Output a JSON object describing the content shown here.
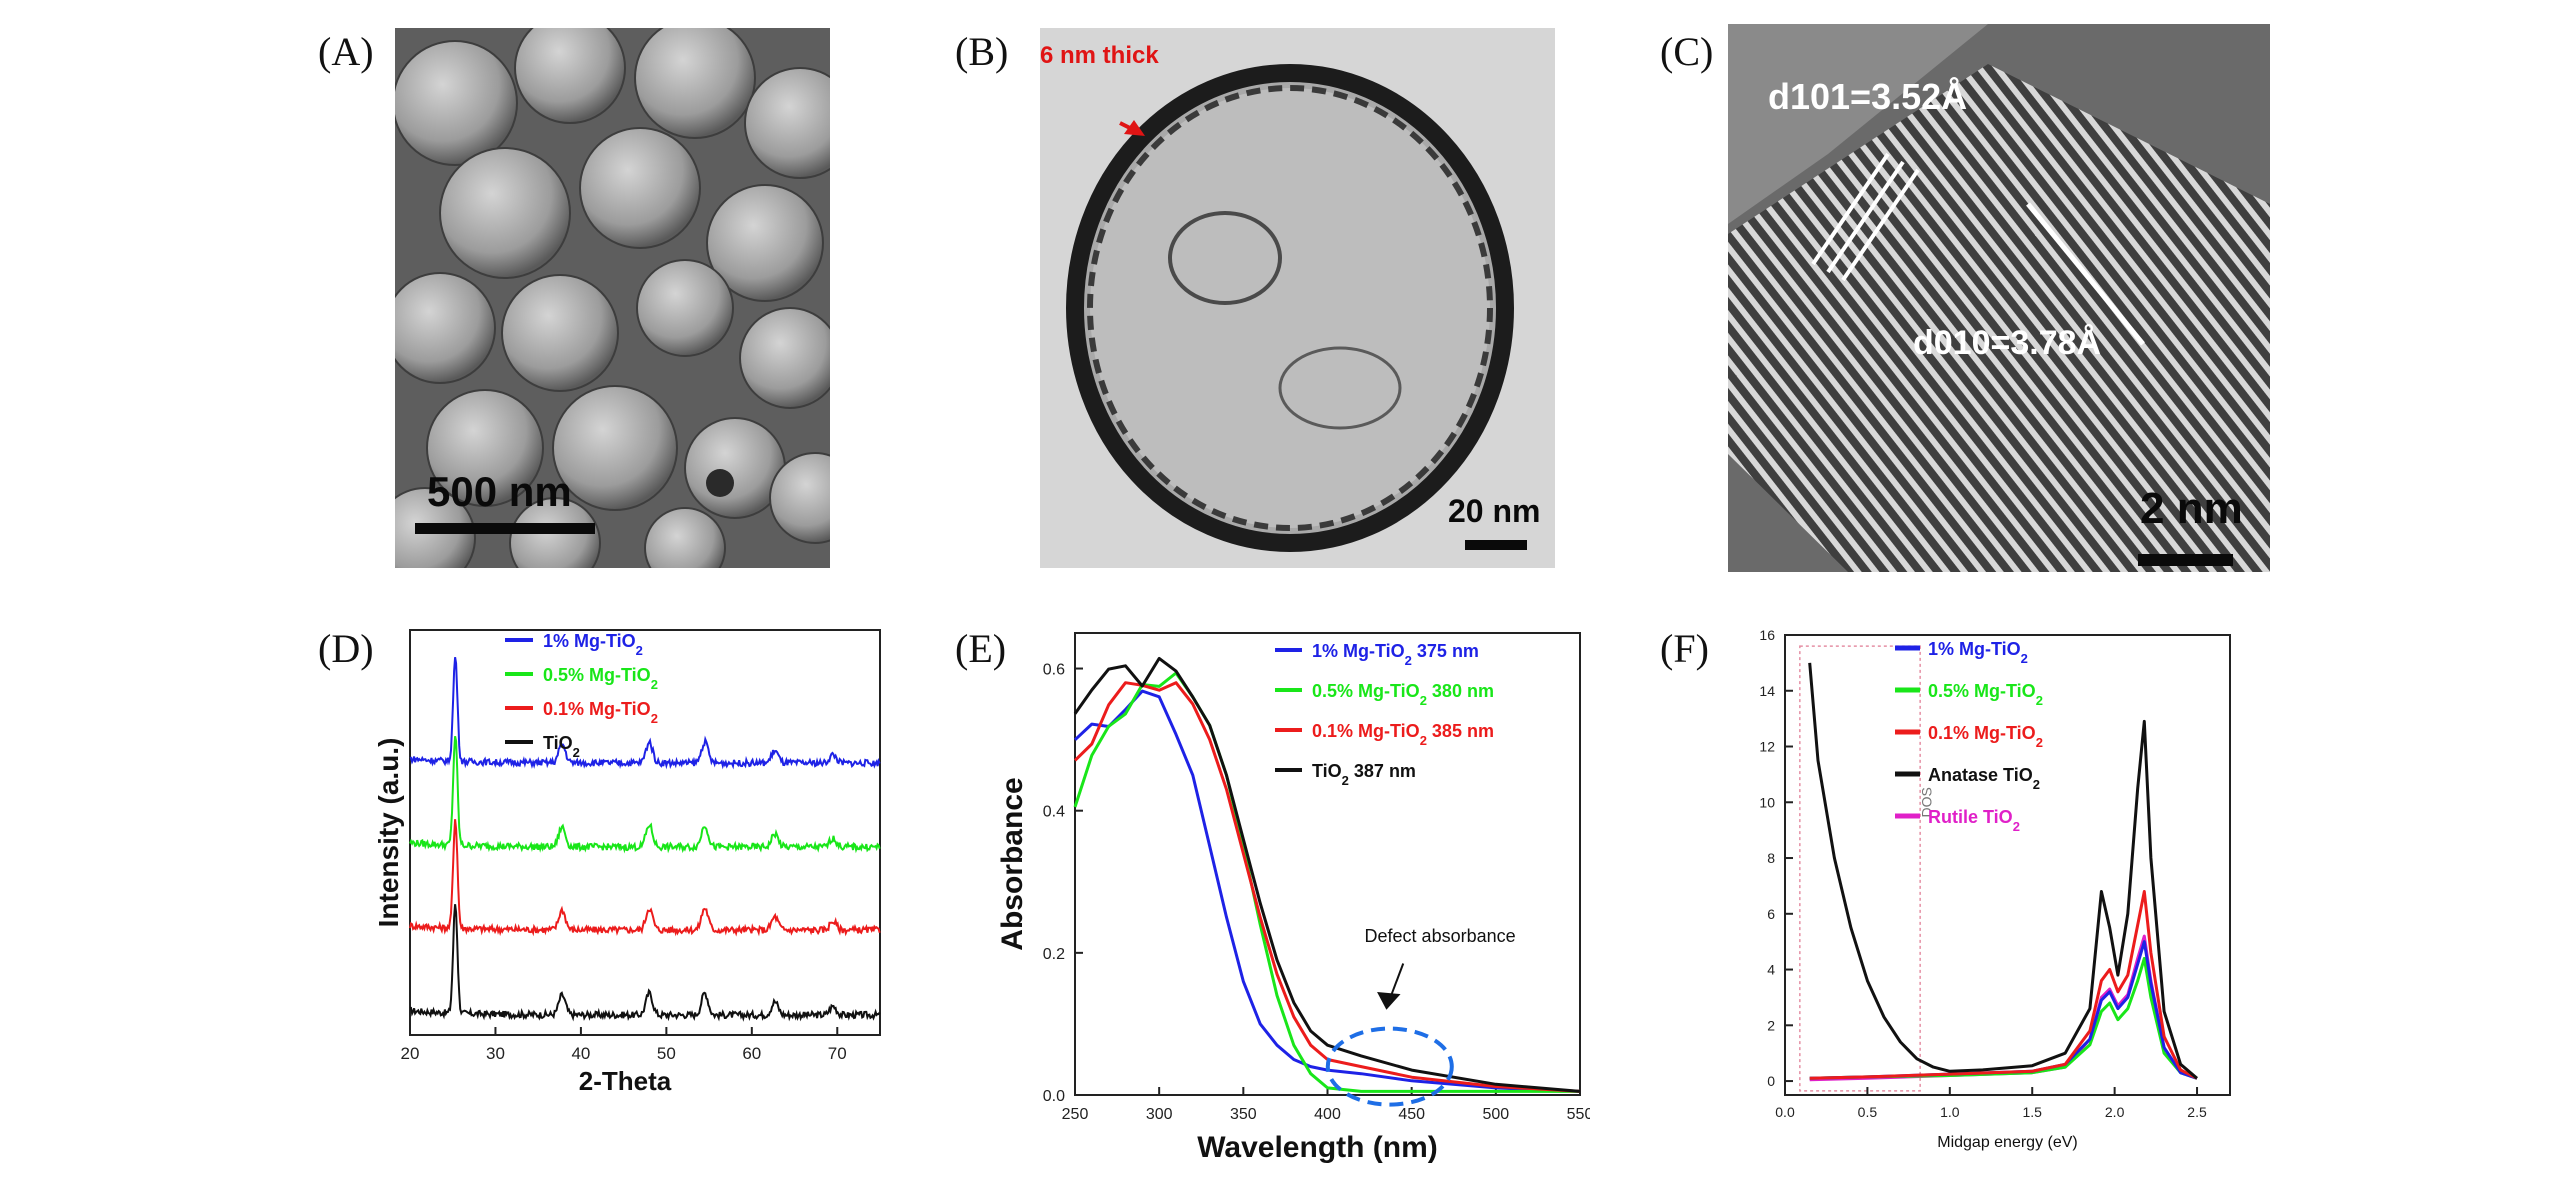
{
  "figure": {
    "panel_labels": [
      "(A)",
      "(B)",
      "(C)",
      "(D)",
      "(E)",
      "(F)"
    ],
    "panel_a": {
      "scale_bar": "500 nm"
    },
    "panel_b": {
      "annotation": "6 nm thick",
      "scale_bar": "20 nm"
    },
    "panel_c": {
      "d101_label": "d101=3.52Å",
      "d010_label": "d010=3.78Å",
      "scale_bar": "2 nm"
    }
  },
  "chart_data": [
    {
      "panel": "D",
      "type": "line",
      "xlabel": "2-Theta",
      "ylabel": "Intensity (a.u.)",
      "xlim": [
        20,
        75
      ],
      "x_ticks": [
        20,
        30,
        40,
        50,
        60,
        70
      ],
      "legend_position": "top-right",
      "peaks_2theta": [
        25.3,
        37.8,
        48.0,
        54.5,
        62.7,
        69.5
      ],
      "series": [
        {
          "name": "1% Mg-TiO2",
          "color": "#1e22e6",
          "offset": 3
        },
        {
          "name": "0.5% Mg-TiO2",
          "color": "#19e619",
          "offset": 2
        },
        {
          "name": "0.1% Mg-TiO2",
          "color": "#ec1c1c",
          "offset": 1
        },
        {
          "name": "TiO2",
          "color": "#111111",
          "offset": 0
        }
      ]
    },
    {
      "panel": "E",
      "type": "line",
      "xlabel": "Wavelength (nm)",
      "ylabel": "Absorbance",
      "xlim": [
        250,
        550
      ],
      "ylim": [
        0,
        0.65
      ],
      "x_ticks": [
        250,
        300,
        350,
        400,
        450,
        500,
        550
      ],
      "x_tick_labels": [
        "250",
        "300",
        "350",
        "400",
        "450",
        "500",
        "550"
      ],
      "y_ticks": [
        0.0,
        0.2,
        0.4,
        0.6
      ],
      "y_tick_labels": [
        "0.0",
        "0.2",
        "0.4",
        "0.6"
      ],
      "legend_position": "top-right",
      "annotation": "Defect absorbance",
      "series": [
        {
          "name": "1% Mg-TiO2 375 nm",
          "color": "#1e22e6",
          "x": [
            250,
            260,
            270,
            280,
            290,
            300,
            310,
            320,
            330,
            340,
            350,
            360,
            370,
            380,
            390,
            400,
            420,
            450,
            500,
            550
          ],
          "y": [
            0.5,
            0.52,
            0.53,
            0.55,
            0.57,
            0.56,
            0.52,
            0.45,
            0.35,
            0.25,
            0.16,
            0.1,
            0.07,
            0.05,
            0.04,
            0.035,
            0.03,
            0.02,
            0.01,
            0.005
          ]
        },
        {
          "name": "0.5% Mg-TiO2 380 nm",
          "color": "#19e619",
          "x": [
            250,
            260,
            270,
            280,
            290,
            300,
            310,
            320,
            330,
            340,
            350,
            360,
            370,
            380,
            390,
            400,
            420,
            450,
            500,
            550
          ],
          "y": [
            0.42,
            0.48,
            0.52,
            0.55,
            0.57,
            0.58,
            0.58,
            0.56,
            0.52,
            0.45,
            0.35,
            0.24,
            0.14,
            0.07,
            0.03,
            0.01,
            0.005,
            0.005,
            0.005,
            0.005
          ]
        },
        {
          "name": "0.1% Mg-TiO2 385 nm",
          "color": "#ec1c1c",
          "x": [
            250,
            260,
            270,
            280,
            290,
            300,
            310,
            320,
            330,
            340,
            350,
            360,
            370,
            380,
            390,
            400,
            420,
            450,
            500,
            550
          ],
          "y": [
            0.47,
            0.5,
            0.54,
            0.57,
            0.59,
            0.58,
            0.57,
            0.55,
            0.5,
            0.43,
            0.34,
            0.25,
            0.17,
            0.11,
            0.07,
            0.05,
            0.04,
            0.025,
            0.012,
            0.005
          ]
        },
        {
          "name": "TiO2 387 nm",
          "color": "#111111",
          "x": [
            250,
            260,
            270,
            280,
            290,
            300,
            310,
            320,
            330,
            340,
            350,
            360,
            370,
            380,
            390,
            400,
            420,
            450,
            500,
            550
          ],
          "y": [
            0.55,
            0.58,
            0.61,
            0.6,
            0.58,
            0.6,
            0.59,
            0.56,
            0.52,
            0.45,
            0.36,
            0.27,
            0.19,
            0.13,
            0.09,
            0.07,
            0.055,
            0.035,
            0.015,
            0.005
          ]
        }
      ]
    },
    {
      "panel": "F",
      "type": "line",
      "xlabel": "Midgap energy (eV)",
      "ylabel": "DOS",
      "xlim": [
        0,
        2.7
      ],
      "ylim": [
        -0.5,
        16
      ],
      "x_ticks": [
        0,
        0.5,
        1.0,
        1.5,
        2.0,
        2.5
      ],
      "x_tick_labels": [
        "0.0",
        "0.5",
        "1.0",
        "1.5",
        "2.0",
        "2.5"
      ],
      "y_ticks": [
        0,
        2,
        4,
        6,
        8,
        10,
        12,
        14,
        16
      ],
      "y_tick_labels": [
        "0",
        "2",
        "4",
        "6",
        "8",
        "10",
        "12",
        "14",
        "16"
      ],
      "legend_position": "top-center",
      "series": [
        {
          "name": "1% Mg-TiO2",
          "color": "#1e22e6",
          "x": [
            0.15,
            0.5,
            1.0,
            1.5,
            1.7,
            1.85,
            1.92,
            1.97,
            2.02,
            2.08,
            2.14,
            2.18,
            2.22,
            2.3,
            2.4,
            2.5
          ],
          "y": [
            0.1,
            0.15,
            0.25,
            0.35,
            0.6,
            1.5,
            2.9,
            3.2,
            2.6,
            3.0,
            4.2,
            5.0,
            3.5,
            1.2,
            0.3,
            0.1
          ]
        },
        {
          "name": "0.5% Mg-TiO2",
          "color": "#19e619",
          "x": [
            0.15,
            0.5,
            1.0,
            1.5,
            1.7,
            1.85,
            1.92,
            1.97,
            2.02,
            2.08,
            2.14,
            2.18,
            2.22,
            2.3,
            2.4,
            2.5
          ],
          "y": [
            0.1,
            0.15,
            0.2,
            0.3,
            0.5,
            1.3,
            2.5,
            2.8,
            2.2,
            2.6,
            3.6,
            4.4,
            3.0,
            1.0,
            0.3,
            0.1
          ]
        },
        {
          "name": "0.1% Mg-TiO2",
          "color": "#ec1c1c",
          "x": [
            0.15,
            0.5,
            1.0,
            1.5,
            1.7,
            1.85,
            1.92,
            1.97,
            2.02,
            2.08,
            2.14,
            2.18,
            2.22,
            2.3,
            2.4,
            2.5
          ],
          "y": [
            0.1,
            0.15,
            0.25,
            0.35,
            0.6,
            1.8,
            3.6,
            4.0,
            3.2,
            3.8,
            5.6,
            6.8,
            4.6,
            1.6,
            0.4,
            0.1
          ]
        },
        {
          "name": "Anatase TiO2",
          "color": "#111111",
          "x": [
            0.15,
            0.2,
            0.3,
            0.4,
            0.5,
            0.6,
            0.7,
            0.8,
            0.9,
            1.0,
            1.2,
            1.5,
            1.7,
            1.85,
            1.92,
            1.97,
            2.02,
            2.08,
            2.14,
            2.18,
            2.22,
            2.3,
            2.4,
            2.5
          ],
          "y": [
            15.0,
            11.5,
            8.0,
            5.5,
            3.6,
            2.3,
            1.4,
            0.8,
            0.5,
            0.35,
            0.4,
            0.55,
            1.0,
            2.6,
            6.8,
            5.5,
            3.8,
            6.0,
            10.5,
            12.9,
            8.0,
            2.5,
            0.6,
            0.1
          ]
        },
        {
          "name": "Rutile TiO2",
          "color": "#e020c8",
          "x": [
            0.15,
            0.5,
            1.0,
            1.5,
            1.7,
            1.85,
            1.92,
            1.97,
            2.02,
            2.08,
            2.14,
            2.18,
            2.22,
            2.3,
            2.4,
            2.5
          ],
          "y": [
            0.05,
            0.1,
            0.2,
            0.3,
            0.5,
            1.5,
            3.0,
            3.3,
            2.7,
            3.1,
            4.4,
            5.2,
            3.6,
            1.2,
            0.3,
            0.1
          ]
        }
      ]
    }
  ]
}
